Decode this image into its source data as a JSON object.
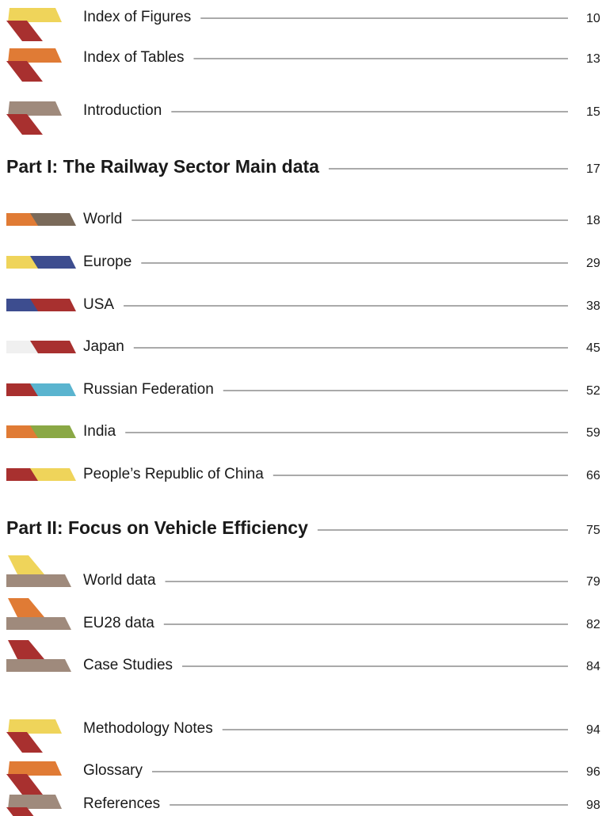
{
  "sections": [
    {
      "items": [
        {
          "title": "Index of Figures",
          "page": 10
        },
        {
          "title": "Index of Tables",
          "page": 13
        },
        {
          "title": "Introduction",
          "page": 15
        }
      ]
    },
    {
      "heading": {
        "title": "Part I: The Railway Sector Main data",
        "page": 17
      },
      "items": [
        {
          "title": "World",
          "page": 18
        },
        {
          "title": "Europe",
          "page": 29
        },
        {
          "title": "USA",
          "page": 38
        },
        {
          "title": "Japan",
          "page": 45
        },
        {
          "title": "Russian Federation",
          "page": 52
        },
        {
          "title": "India",
          "page": 59
        },
        {
          "title": "People’s Republic of China",
          "page": 66
        }
      ]
    },
    {
      "heading": {
        "title": "Part II: Focus on Vehicle Efficiency",
        "page": 75
      },
      "items": [
        {
          "title": "World data",
          "page": 79
        },
        {
          "title": "EU28 data",
          "page": 82
        },
        {
          "title": "Case Studies",
          "page": 84
        }
      ]
    },
    {
      "items": [
        {
          "title": "Methodology Notes",
          "page": 94
        },
        {
          "title": "Glossary",
          "page": 96
        },
        {
          "title": "References",
          "page": 98
        }
      ]
    }
  ]
}
